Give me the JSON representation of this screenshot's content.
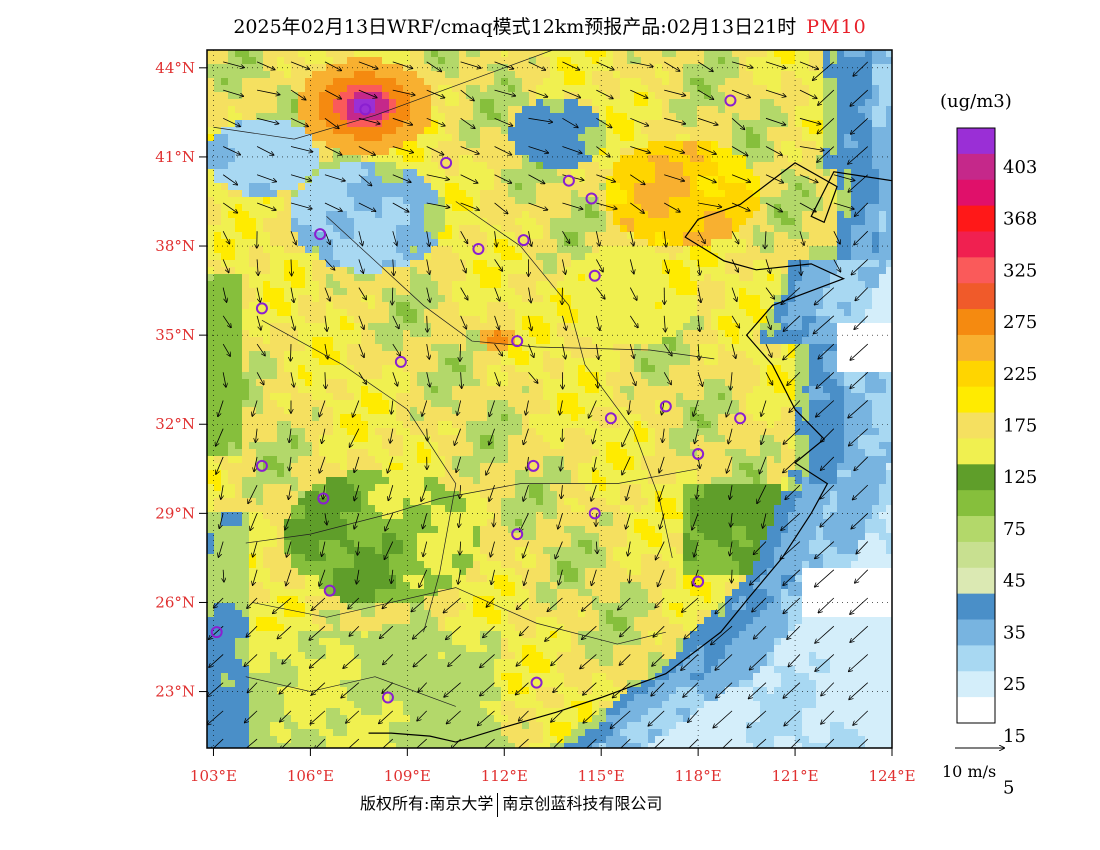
{
  "title": {
    "main": "2025年02月13日WRF/cmaq模式12km预报产品:02月13日21时",
    "pollutant": "PM10"
  },
  "axes": {
    "lat_labels": [
      "44°N",
      "41°N",
      "38°N",
      "35°N",
      "32°N",
      "29°N",
      "26°N",
      "23°N"
    ],
    "lat_values": [
      44,
      41,
      38,
      35,
      32,
      29,
      26,
      23
    ],
    "lon_labels": [
      "103°E",
      "106°E",
      "109°E",
      "112°E",
      "115°E",
      "118°E",
      "121°E",
      "124°E"
    ],
    "lon_values": [
      103,
      106,
      109,
      112,
      115,
      118,
      121,
      124
    ],
    "lon_range": [
      102.8,
      124.0
    ],
    "lat_range": [
      21.1,
      44.6
    ],
    "label_color": "#e03030"
  },
  "legend": {
    "unit": "(ug/m3)",
    "labels": [
      "403",
      "368",
      "325",
      "275",
      "225",
      "175",
      "125",
      "75",
      "45",
      "35",
      "25",
      "15",
      "5"
    ],
    "colors": [
      "#9a2fd6",
      "#c5288a",
      "#e0106a",
      "#ff1818",
      "#f02050",
      "#fa5a5a",
      "#f05a2a",
      "#f58a10",
      "#f8b030",
      "#ffd500",
      "#ffeb00",
      "#f5e060",
      "#f0f050",
      "#5f9e2a",
      "#86bf3c",
      "#b3d86a",
      "#c8e090",
      "#dbe9b3",
      "#4a8fc8",
      "#78b4e0",
      "#a8d8f2",
      "#d4eefa",
      "#ffffff"
    ]
  },
  "wind_reference": {
    "label": "10 m/s"
  },
  "cities": [
    {
      "lon": 119.0,
      "lat": 42.9
    },
    {
      "lon": 107.7,
      "lat": 42.6
    },
    {
      "lon": 110.2,
      "lat": 40.8
    },
    {
      "lon": 114.0,
      "lat": 40.2
    },
    {
      "lon": 114.7,
      "lat": 39.6
    },
    {
      "lon": 106.3,
      "lat": 38.4
    },
    {
      "lon": 111.2,
      "lat": 37.9
    },
    {
      "lon": 112.6,
      "lat": 38.2
    },
    {
      "lon": 114.8,
      "lat": 37.0
    },
    {
      "lon": 104.5,
      "lat": 35.9
    },
    {
      "lon": 112.4,
      "lat": 34.8
    },
    {
      "lon": 108.8,
      "lat": 34.1
    },
    {
      "lon": 117.0,
      "lat": 32.6
    },
    {
      "lon": 115.3,
      "lat": 32.2
    },
    {
      "lon": 119.3,
      "lat": 32.2
    },
    {
      "lon": 118.0,
      "lat": 31.0
    },
    {
      "lon": 104.5,
      "lat": 30.6
    },
    {
      "lon": 112.9,
      "lat": 30.6
    },
    {
      "lon": 106.4,
      "lat": 29.5
    },
    {
      "lon": 114.8,
      "lat": 29.0
    },
    {
      "lon": 112.4,
      "lat": 28.3
    },
    {
      "lon": 106.6,
      "lat": 26.4
    },
    {
      "lon": 118.0,
      "lat": 26.7
    },
    {
      "lon": 103.1,
      "lat": 25.0
    },
    {
      "lon": 108.4,
      "lat": 22.8
    },
    {
      "lon": 113.0,
      "lat": 23.3
    }
  ],
  "footer": {
    "copyright": "版权所有:南京大学",
    "company": "南京创蓝科技有限公司"
  }
}
